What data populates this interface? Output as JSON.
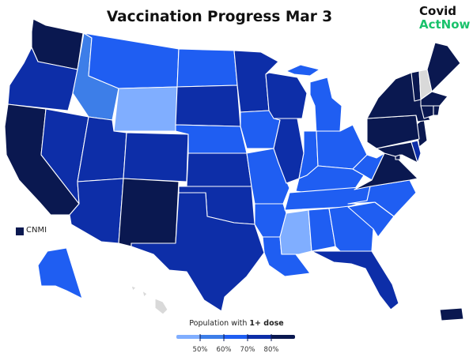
{
  "title": "Vaccination Progress Mar 3",
  "brand": {
    "line1": "Covid",
    "line2": "ActNow"
  },
  "colors": {
    "bin_lt50": "#80aeff",
    "bin_50_60": "#3d7ee8",
    "bin_60_70": "#1f5ef2",
    "bin_70_80": "#0d2ea8",
    "bin_80plus": "#0a1850",
    "no_data": "#d9d9d9"
  },
  "map_data": {
    "metric": "Population with 1+ dose",
    "bins": [
      {
        "key": "bin_lt50",
        "label": "< 50%"
      },
      {
        "key": "bin_50_60",
        "label": "50% – 60%"
      },
      {
        "key": "bin_60_70",
        "label": "60% – 70%"
      },
      {
        "key": "bin_70_80",
        "label": "70% – 80%"
      },
      {
        "key": "bin_80plus",
        "label": "80%+"
      }
    ],
    "states": {
      "WA": "bin_80plus",
      "OR": "bin_70_80",
      "CA": "bin_80plus",
      "NV": "bin_70_80",
      "ID": "bin_50_60",
      "MT": "bin_60_70",
      "WY": "bin_lt50",
      "UT": "bin_70_80",
      "CO": "bin_70_80",
      "AZ": "bin_70_80",
      "NM": "bin_80plus",
      "ND": "bin_60_70",
      "SD": "bin_70_80",
      "NE": "bin_60_70",
      "KS": "bin_70_80",
      "OK": "bin_70_80",
      "TX": "bin_70_80",
      "MN": "bin_70_80",
      "IA": "bin_60_70",
      "MO": "bin_60_70",
      "AR": "bin_60_70",
      "LA": "bin_60_70",
      "WI": "bin_70_80",
      "IL": "bin_70_80",
      "MI": "bin_60_70",
      "IN": "bin_60_70",
      "OH": "bin_60_70",
      "KY": "bin_60_70",
      "TN": "bin_60_70",
      "MS": "bin_lt50",
      "AL": "bin_60_70",
      "GA": "bin_60_70",
      "FL": "bin_70_80",
      "SC": "bin_60_70",
      "NC": "bin_60_70",
      "WV": "bin_60_70",
      "VA": "bin_80plus",
      "MD": "bin_80plus",
      "DE": "bin_70_80",
      "NJ": "bin_80plus",
      "PA": "bin_80plus",
      "NY": "bin_80plus",
      "VT": "bin_80plus",
      "NH": "no_data",
      "ME": "bin_80plus",
      "MA": "bin_80plus",
      "CT": "bin_80plus",
      "RI": "bin_80plus",
      "DC": "bin_80plus",
      "AK": "bin_60_70",
      "HI": "no_data",
      "PR": "bin_80plus",
      "CNMI": "bin_80plus"
    }
  },
  "cnmi_label": "CNMI",
  "legend": {
    "title_prefix": "Population with ",
    "title_bold": "1+ dose",
    "ticks": [
      "50%",
      "60%",
      "70%",
      "80%"
    ]
  }
}
